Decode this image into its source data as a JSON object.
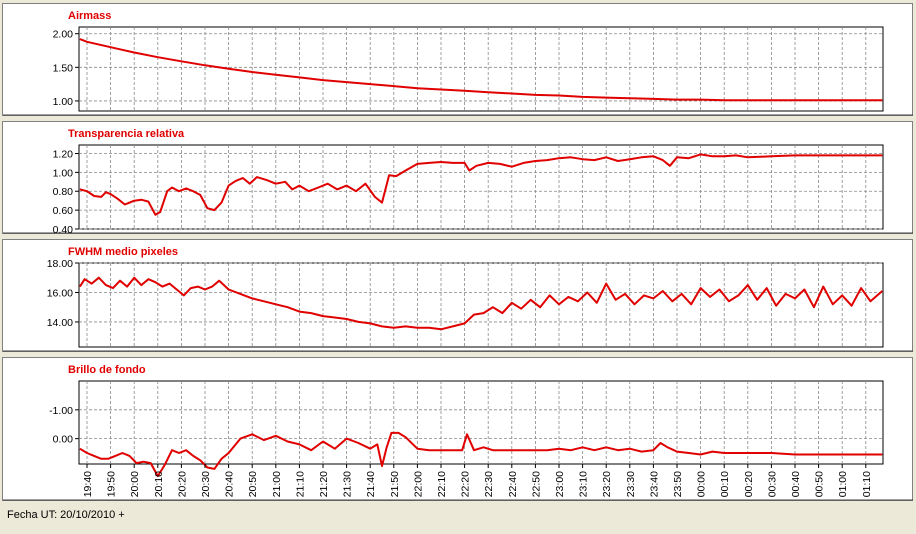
{
  "footer": {
    "label": "Fecha UT: 20/10/2010 +"
  },
  "x_tick_labels": [
    "19:40",
    "19:50",
    "20:00",
    "20:10",
    "20:20",
    "20:30",
    "20:40",
    "20:50",
    "21:00",
    "21:10",
    "21:20",
    "21:30",
    "21:40",
    "21:50",
    "22:00",
    "22:10",
    "22:20",
    "22:30",
    "22:40",
    "22:50",
    "23:00",
    "23:10",
    "23:20",
    "23:30",
    "23:40",
    "23:50",
    "00:00",
    "00:10",
    "00:20",
    "00:30",
    "00:40",
    "00:50",
    "01:00",
    "01:10"
  ],
  "colors": {
    "line": "#e00000",
    "title": "#e00000",
    "panel_bg": "#ffffff",
    "grid": "#888888"
  },
  "chart_data": [
    {
      "type": "line",
      "title": "Airmass",
      "ylim": [
        0.85,
        2.1
      ],
      "yticks": [
        1.0,
        1.5,
        2.0
      ],
      "ytick_labels": [
        "1.00",
        "1.50",
        "2.00"
      ],
      "x": [
        "19:37",
        "19:40",
        "19:50",
        "20:00",
        "20:10",
        "20:20",
        "20:30",
        "20:40",
        "20:50",
        "21:00",
        "21:10",
        "21:20",
        "21:30",
        "21:40",
        "21:50",
        "22:00",
        "22:10",
        "22:20",
        "22:30",
        "22:40",
        "22:50",
        "23:00",
        "23:10",
        "23:20",
        "23:30",
        "23:40",
        "23:50",
        "00:00",
        "00:10",
        "00:20",
        "00:30",
        "00:40",
        "00:50",
        "01:00",
        "01:10",
        "01:17"
      ],
      "y": [
        1.92,
        1.88,
        1.8,
        1.72,
        1.65,
        1.59,
        1.53,
        1.48,
        1.43,
        1.39,
        1.35,
        1.31,
        1.28,
        1.25,
        1.22,
        1.19,
        1.17,
        1.15,
        1.13,
        1.11,
        1.09,
        1.08,
        1.06,
        1.05,
        1.04,
        1.03,
        1.02,
        1.02,
        1.01,
        1.01,
        1.01,
        1.01,
        1.01,
        1.01,
        1.01,
        1.01
      ]
    },
    {
      "type": "line",
      "title": "Transparencia relativa",
      "ylim": [
        0.4,
        1.29
      ],
      "yticks": [
        0.4,
        0.6,
        0.8,
        1.0,
        1.2
      ],
      "ytick_labels": [
        "0.40",
        "0.60",
        "0.80",
        "1.00",
        "1.20"
      ],
      "x": [
        "19:37",
        "19:40",
        "19:43",
        "19:46",
        "19:48",
        "19:50",
        "19:53",
        "19:56",
        "20:00",
        "20:03",
        "20:06",
        "20:09",
        "20:11",
        "20:14",
        "20:16",
        "20:19",
        "20:22",
        "20:25",
        "20:28",
        "20:31",
        "20:34",
        "20:37",
        "20:40",
        "20:43",
        "20:46",
        "20:49",
        "20:52",
        "20:56",
        "21:00",
        "21:04",
        "21:07",
        "21:10",
        "21:14",
        "21:18",
        "21:22",
        "21:26",
        "21:30",
        "21:34",
        "21:38",
        "21:42",
        "21:45",
        "21:48",
        "21:51",
        "21:55",
        "22:00",
        "22:05",
        "22:10",
        "22:15",
        "22:20",
        "22:22",
        "22:25",
        "22:30",
        "22:35",
        "22:40",
        "22:45",
        "22:50",
        "22:55",
        "23:00",
        "23:05",
        "23:10",
        "23:15",
        "23:20",
        "23:25",
        "23:30",
        "23:35",
        "23:40",
        "23:44",
        "23:47",
        "23:50",
        "23:55",
        "00:00",
        "00:05",
        "00:10",
        "00:15",
        "00:20",
        "00:30",
        "00:40",
        "00:50",
        "01:00",
        "01:10",
        "01:17"
      ],
      "y": [
        0.82,
        0.8,
        0.75,
        0.74,
        0.79,
        0.77,
        0.72,
        0.66,
        0.7,
        0.71,
        0.69,
        0.55,
        0.58,
        0.8,
        0.84,
        0.8,
        0.83,
        0.8,
        0.76,
        0.62,
        0.6,
        0.68,
        0.86,
        0.91,
        0.94,
        0.88,
        0.95,
        0.92,
        0.88,
        0.9,
        0.82,
        0.86,
        0.8,
        0.84,
        0.88,
        0.82,
        0.86,
        0.8,
        0.88,
        0.74,
        0.68,
        0.97,
        0.96,
        1.02,
        1.09,
        1.1,
        1.11,
        1.1,
        1.1,
        1.02,
        1.07,
        1.1,
        1.09,
        1.06,
        1.1,
        1.12,
        1.13,
        1.15,
        1.16,
        1.14,
        1.13,
        1.16,
        1.12,
        1.14,
        1.16,
        1.17,
        1.13,
        1.07,
        1.16,
        1.15,
        1.19,
        1.17,
        1.17,
        1.18,
        1.16,
        1.17,
        1.18,
        1.18,
        1.18,
        1.18,
        1.18
      ]
    },
    {
      "type": "line",
      "title": "FWHM medio pixeles",
      "ylim": [
        12.3,
        18.0
      ],
      "yticks": [
        14.0,
        16.0,
        18.0
      ],
      "ytick_labels": [
        "14.00",
        "16.00",
        "18.00"
      ],
      "x": [
        "19:37",
        "19:39",
        "19:42",
        "19:45",
        "19:48",
        "19:51",
        "19:54",
        "19:57",
        "20:00",
        "20:03",
        "20:06",
        "20:09",
        "20:12",
        "20:15",
        "20:18",
        "20:21",
        "20:24",
        "20:27",
        "20:30",
        "20:33",
        "20:36",
        "20:40",
        "20:45",
        "20:50",
        "20:55",
        "21:00",
        "21:05",
        "21:10",
        "21:15",
        "21:20",
        "21:25",
        "21:30",
        "21:35",
        "21:40",
        "21:45",
        "21:50",
        "21:55",
        "22:00",
        "22:05",
        "22:10",
        "22:15",
        "22:20",
        "22:24",
        "22:28",
        "22:32",
        "22:36",
        "22:40",
        "22:44",
        "22:48",
        "22:52",
        "22:56",
        "23:00",
        "23:04",
        "23:08",
        "23:12",
        "23:16",
        "23:20",
        "23:24",
        "23:28",
        "23:32",
        "23:36",
        "23:40",
        "23:44",
        "23:48",
        "23:52",
        "23:56",
        "00:00",
        "00:04",
        "00:08",
        "00:12",
        "00:16",
        "00:20",
        "00:24",
        "00:28",
        "00:32",
        "00:36",
        "00:40",
        "00:44",
        "00:48",
        "00:52",
        "00:56",
        "01:00",
        "01:04",
        "01:08",
        "01:12",
        "01:17"
      ],
      "y": [
        16.4,
        16.9,
        16.6,
        17.0,
        16.5,
        16.3,
        16.8,
        16.4,
        17.0,
        16.5,
        16.9,
        16.7,
        16.4,
        16.6,
        16.2,
        15.8,
        16.3,
        16.4,
        16.2,
        16.4,
        16.8,
        16.2,
        15.9,
        15.6,
        15.4,
        15.2,
        15.0,
        14.7,
        14.6,
        14.4,
        14.3,
        14.2,
        14.0,
        13.9,
        13.7,
        13.6,
        13.7,
        13.6,
        13.6,
        13.5,
        13.7,
        13.9,
        14.5,
        14.6,
        15.0,
        14.6,
        15.3,
        14.9,
        15.5,
        15.0,
        15.8,
        15.2,
        15.7,
        15.4,
        16.0,
        15.3,
        16.6,
        15.5,
        15.9,
        15.2,
        15.8,
        15.6,
        16.1,
        15.4,
        15.9,
        15.2,
        16.3,
        15.7,
        16.2,
        15.4,
        15.8,
        16.5,
        15.5,
        16.3,
        15.1,
        15.9,
        15.6,
        16.2,
        15.0,
        16.4,
        15.2,
        15.8,
        15.1,
        16.3,
        15.4,
        16.1
      ]
    },
    {
      "type": "line",
      "title": "Brillo de fondo",
      "ylim": [
        0.88,
        -2.0
      ],
      "yticks": [
        -1.0,
        0.0
      ],
      "ytick_labels": [
        "-1.00",
        "0.00"
      ],
      "x": [
        "19:37",
        "19:40",
        "19:43",
        "19:46",
        "19:49",
        "19:52",
        "19:55",
        "19:58",
        "20:01",
        "20:04",
        "20:07",
        "20:10",
        "20:13",
        "20:16",
        "20:19",
        "20:22",
        "20:25",
        "20:28",
        "20:31",
        "20:34",
        "20:37",
        "20:40",
        "20:45",
        "20:50",
        "20:55",
        "21:00",
        "21:05",
        "21:10",
        "21:15",
        "21:20",
        "21:25",
        "21:30",
        "21:35",
        "21:40",
        "21:43",
        "21:45",
        "21:47",
        "21:49",
        "21:52",
        "21:55",
        "22:00",
        "22:05",
        "22:10",
        "22:15",
        "22:19",
        "22:21",
        "22:24",
        "22:28",
        "22:32",
        "22:36",
        "22:40",
        "22:45",
        "22:50",
        "22:55",
        "23:00",
        "23:05",
        "23:10",
        "23:15",
        "23:20",
        "23:25",
        "23:30",
        "23:35",
        "23:40",
        "23:43",
        "23:46",
        "23:50",
        "23:55",
        "00:00",
        "00:05",
        "00:10",
        "00:20",
        "00:30",
        "00:40",
        "00:50",
        "01:00",
        "01:10",
        "01:17"
      ],
      "y": [
        0.35,
        0.5,
        0.6,
        0.7,
        0.7,
        0.6,
        0.5,
        0.6,
        0.85,
        0.8,
        0.85,
        1.3,
        0.9,
        0.4,
        0.5,
        0.4,
        0.6,
        0.75,
        1.0,
        1.05,
        0.7,
        0.5,
        0.0,
        -0.15,
        0.05,
        -0.1,
        0.1,
        0.2,
        0.4,
        0.1,
        0.35,
        0.0,
        0.15,
        0.35,
        0.2,
        0.95,
        0.3,
        -0.2,
        -0.2,
        -0.05,
        0.35,
        0.4,
        0.4,
        0.4,
        0.4,
        -0.15,
        0.4,
        0.3,
        0.4,
        0.4,
        0.4,
        0.4,
        0.4,
        0.4,
        0.35,
        0.4,
        0.3,
        0.4,
        0.3,
        0.4,
        0.35,
        0.45,
        0.4,
        0.15,
        0.3,
        0.45,
        0.5,
        0.55,
        0.45,
        0.5,
        0.5,
        0.5,
        0.55,
        0.55,
        0.55,
        0.55,
        0.55
      ]
    }
  ]
}
